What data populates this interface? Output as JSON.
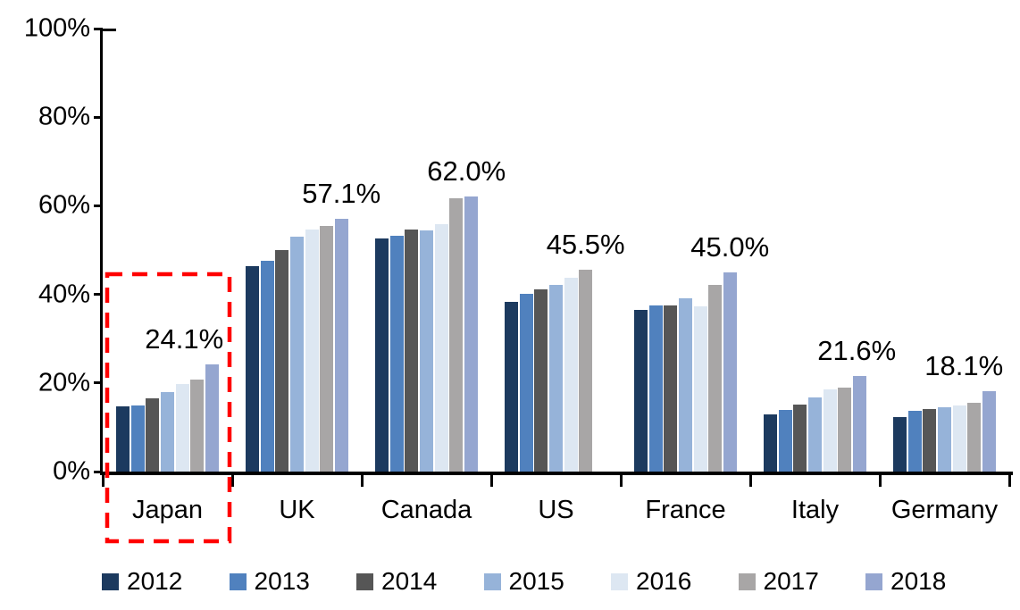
{
  "chart_data": {
    "type": "bar",
    "title": "",
    "xlabel": "",
    "ylabel": "",
    "unit": "%",
    "grid": false,
    "categories": [
      "Japan",
      "UK",
      "Canada",
      "US",
      "France",
      "Italy",
      "Germany"
    ],
    "series": [
      {
        "name": "2012",
        "color": "#1C3A5F",
        "values": [
          14.8,
          46.3,
          52.7,
          38.3,
          36.4,
          13.0,
          12.3
        ]
      },
      {
        "name": "2013",
        "color": "#5081BE",
        "values": [
          15.0,
          47.6,
          53.2,
          40.1,
          37.6,
          13.9,
          13.7
        ]
      },
      {
        "name": "2014",
        "color": "#565656",
        "values": [
          16.5,
          49.9,
          54.7,
          41.1,
          37.6,
          15.1,
          14.1
        ]
      },
      {
        "name": "2015",
        "color": "#96B3D9",
        "values": [
          17.9,
          53.0,
          54.4,
          42.2,
          39.2,
          16.7,
          14.5
        ]
      },
      {
        "name": "2016",
        "color": "#DDE7F2",
        "values": [
          19.7,
          54.7,
          55.9,
          43.7,
          37.3,
          18.6,
          15.0
        ]
      },
      {
        "name": "2017",
        "color": "#A8A6A6",
        "values": [
          20.8,
          55.5,
          61.6,
          45.5,
          42.2,
          18.9,
          15.6
        ]
      },
      {
        "name": "2018",
        "color": "#95A6D0",
        "values": [
          24.1,
          57.1,
          62.0,
          null,
          45.0,
          21.6,
          18.1
        ]
      }
    ],
    "data_labels": [
      {
        "category": "Japan",
        "text": "24.1%",
        "dx": -31
      },
      {
        "category": "UK",
        "text": "57.1%",
        "dx": 0
      },
      {
        "category": "Canada",
        "text": "62.0%",
        "dx": -5
      },
      {
        "category": "US",
        "text": "45.5%",
        "dx": 0
      },
      {
        "category": "France",
        "text": "45.0%",
        "dx": 0
      },
      {
        "category": "Italy",
        "text": "21.6%",
        "dx": -3
      },
      {
        "category": "Germany",
        "text": "18.1%",
        "dx": -28
      }
    ],
    "y_axis": {
      "min": 0,
      "max": 100,
      "step": 20,
      "tick_labels": [
        "0%",
        "20%",
        "40%",
        "60%",
        "80%",
        "100%"
      ]
    },
    "legend": {
      "position": "bottom",
      "entries": [
        "2012",
        "2013",
        "2014",
        "2015",
        "2016",
        "2017",
        "2018"
      ]
    },
    "highlight": {
      "shape": "dashed-rectangle",
      "color": "#FF0000",
      "category": "Japan"
    },
    "colors": {
      "axis": "#000000",
      "text": "#000000",
      "background": "#FFFFFF",
      "highlight": "#FF0000"
    }
  }
}
